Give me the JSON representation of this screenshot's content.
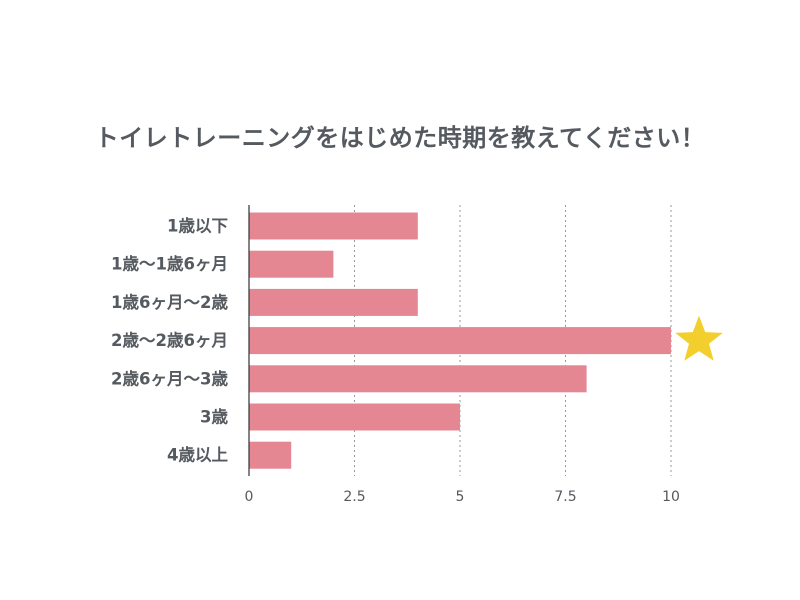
{
  "colors": {
    "bar": "#e48793",
    "grid": "#999999",
    "axis": "#333333",
    "text": "#555a60",
    "highlight": "#f2cf2d"
  },
  "chart_data": {
    "type": "bar",
    "orientation": "horizontal",
    "title": "トイレトレーニングをはじめた時期を教えてください！",
    "categories": [
      "1歳以下",
      "1歳〜1歳6ヶ月",
      "1歳6ヶ月〜2歳",
      "2歳〜2歳6ヶ月",
      "2歳6ヶ月〜3歳",
      "3歳",
      "4歳以上"
    ],
    "values": [
      4,
      2,
      4,
      10,
      8,
      5,
      1
    ],
    "xlim": [
      0,
      10
    ],
    "xticks": [
      0,
      2.5,
      5,
      7.5,
      10
    ],
    "xtick_labels": [
      "0",
      "2.5",
      "5",
      "7.5",
      "10"
    ],
    "grid": "vertical dotted",
    "legend": "none",
    "highlight": {
      "category": "2歳〜2歳6ヶ月",
      "marker": "star-icon"
    }
  }
}
